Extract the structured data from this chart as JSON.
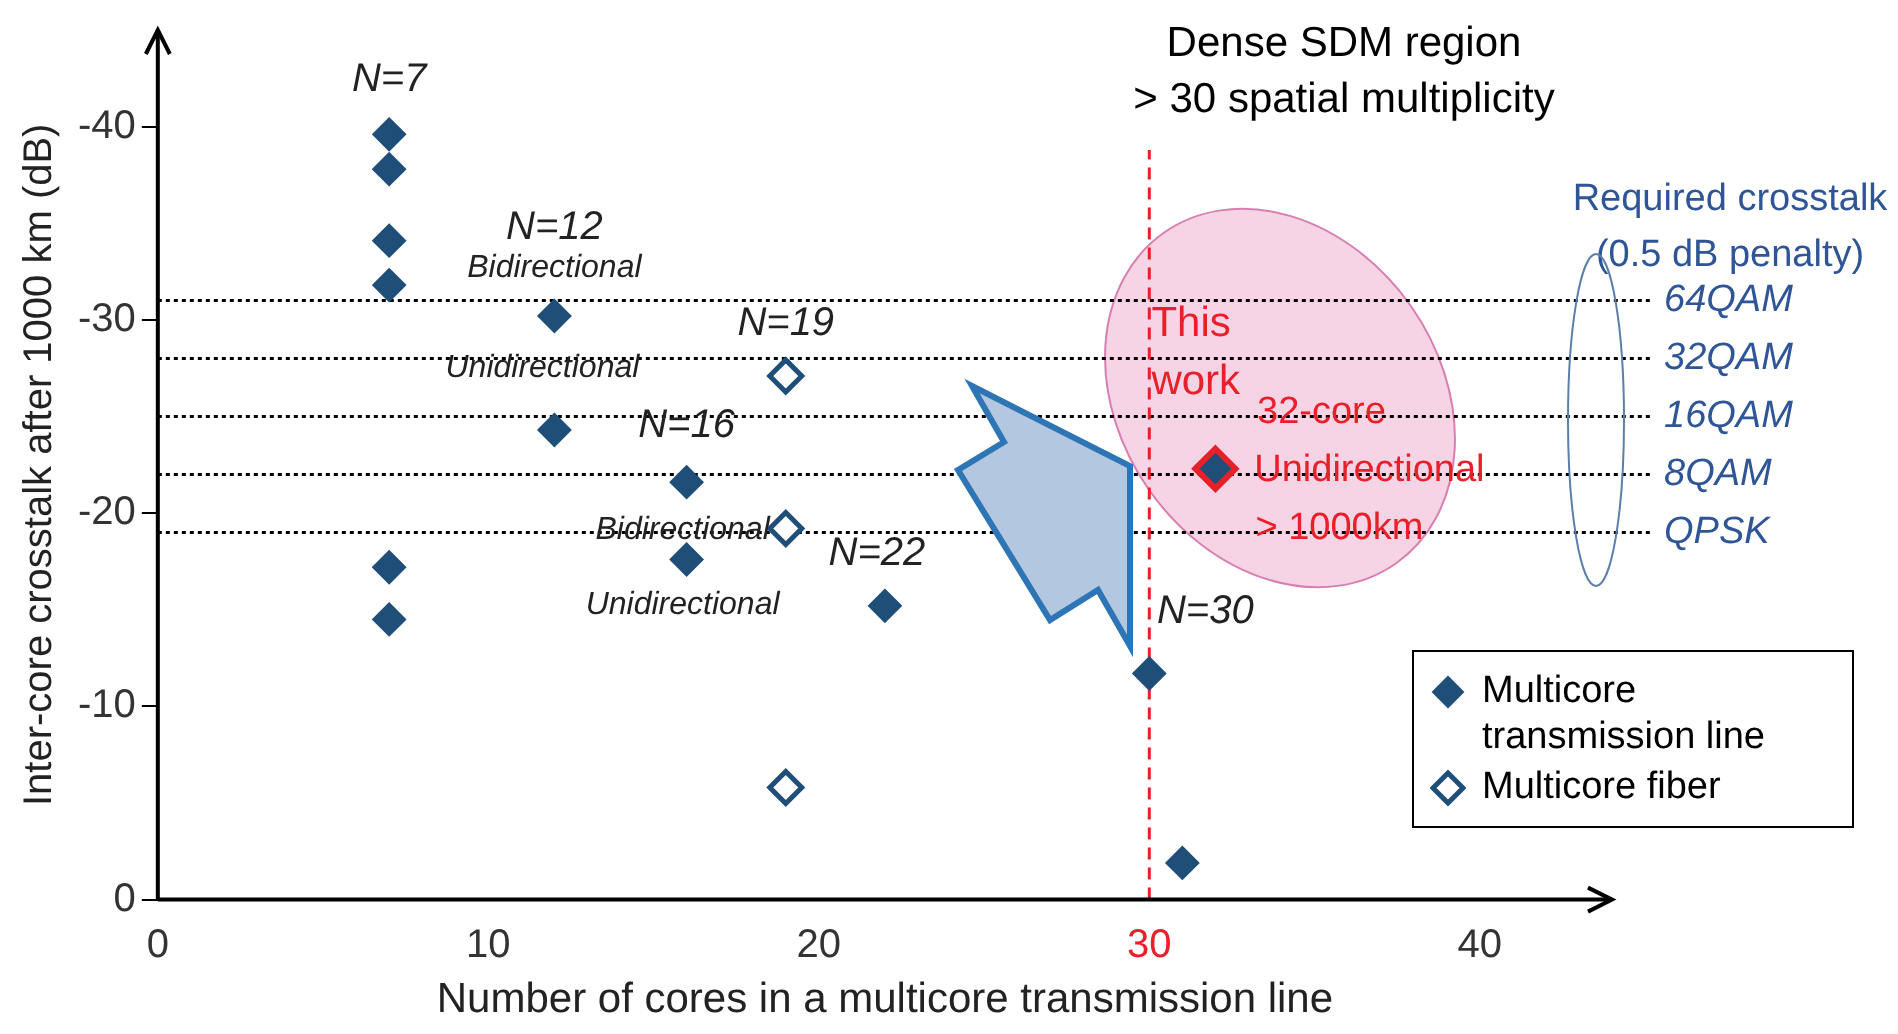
{
  "chart_data": {
    "type": "scatter",
    "xlabel": "Number of cores in a multicore transmission line",
    "ylabel": "Inter-core crosstalk after 1000 km (dB)",
    "xlim": [
      0,
      44
    ],
    "xticks": [
      0,
      10,
      20,
      30,
      40
    ],
    "ylim": [
      0,
      -45
    ],
    "yticks": [
      0,
      -10,
      -20,
      -30,
      -40
    ],
    "grid": false,
    "legend": "bottom right",
    "marker": "diamond",
    "series": [
      {
        "name": "Multicore transmission line",
        "color": "#1f4e79",
        "x": [
          7,
          7,
          7,
          7,
          7,
          7,
          12,
          12,
          16,
          16,
          22,
          30,
          31
        ],
        "values": [
          -39.6,
          -37.8,
          -34.1,
          -31.8,
          -17.2,
          -14.5,
          -30.2,
          -24.3,
          -21.6,
          -17.6,
          -15.2,
          -11.7,
          -1.9
        ]
      },
      {
        "name": "Multicore fiber",
        "color": "#1f4e79",
        "marker": "diamond-open",
        "x": [
          19,
          19,
          19
        ],
        "values": [
          -27.1,
          -19.2,
          -5.8
        ]
      },
      {
        "name": "This work",
        "color": "#e8202a",
        "x": [
          32
        ],
        "values": [
          -22.3
        ],
        "value_labels": [
          "32-core\nUnidirectional\n> 1000km"
        ]
      }
    ],
    "ref_lines": [
      {
        "axis": "y",
        "value": -31,
        "label": "64QAM",
        "color": "#000000",
        "line_style": "dotted"
      },
      {
        "axis": "y",
        "value": -28,
        "label": "32QAM",
        "color": "#000000",
        "line_style": "dotted"
      },
      {
        "axis": "y",
        "value": -25,
        "label": "16QAM",
        "color": "#000000",
        "line_style": "dotted"
      },
      {
        "axis": "y",
        "value": -22,
        "label": "8QAM",
        "color": "#000000",
        "line_style": "dotted"
      },
      {
        "axis": "y",
        "value": -19,
        "label": "QPSK",
        "color": "#000000",
        "line_style": "dotted"
      },
      {
        "axis": "x",
        "value": 30,
        "color": "#e8202a",
        "line_style": "dashed"
      }
    ],
    "annotations": [
      {
        "text": "N=7",
        "x": 7,
        "y": -39.6
      },
      {
        "text": "N=12",
        "x": 12,
        "y": -30.2
      },
      {
        "text": "Bidirectional",
        "x": 12,
        "y": -30.2
      },
      {
        "text": "N=19",
        "x": 19,
        "y": -27.1
      },
      {
        "text": "Unidirectional",
        "x": 12,
        "y": -24.3
      },
      {
        "text": "N=16",
        "x": 16,
        "y": -21.6
      },
      {
        "text": "Bidirectional",
        "x": 16,
        "y": -21.6
      },
      {
        "text": "Unidirectional",
        "x": 16,
        "y": -17.6
      },
      {
        "text": "N=22",
        "x": 22,
        "y": -15.2
      },
      {
        "text": "N=30",
        "x": 30,
        "y": -11.7
      },
      "Dense SDM region\n> 30 spatial multiplicity",
      "Required crosstalk\n(0.5 dB penalty)"
    ]
  }
}
